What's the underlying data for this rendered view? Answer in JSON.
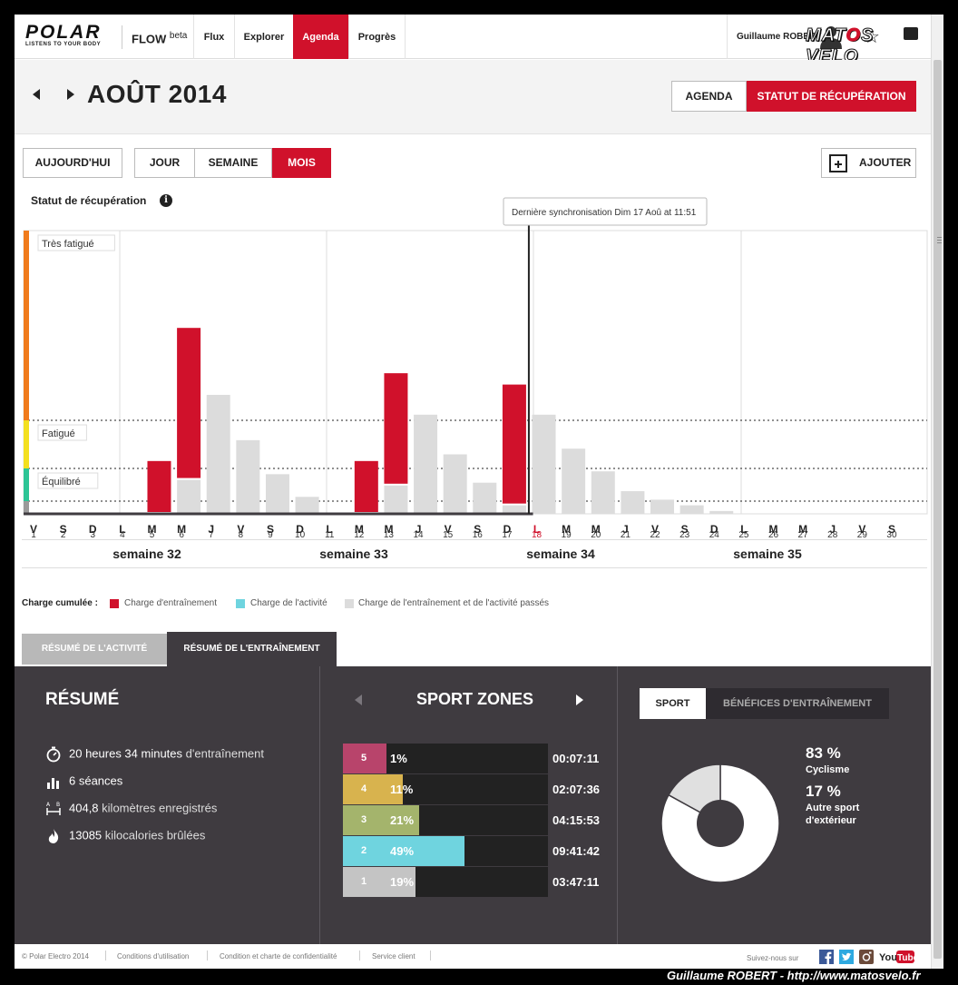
{
  "nav": {
    "brand": "POLAR",
    "tagline": "LISTENS TO YOUR BODY",
    "product": "FLOW",
    "product_sup": "beta",
    "items": [
      {
        "label": "Flux",
        "active": false
      },
      {
        "label": "Explorer",
        "active": false
      },
      {
        "label": "Agenda",
        "active": true
      },
      {
        "label": "Progrès",
        "active": false
      }
    ],
    "user_name": "Guillaume ROBERT",
    "watermark": "MATOS VELO"
  },
  "header": {
    "month": "AOÛT 2014",
    "agenda_label": "AGENDA",
    "recovery_label": "STATUT DE RÉCUPÉRATION"
  },
  "views": {
    "today": "AUJOURD'HUI",
    "day": "JOUR",
    "week": "SEMAINE",
    "month": "MOIS",
    "add": "AJOUTER"
  },
  "chart_data": {
    "type": "bar",
    "title": "Statut de récupération",
    "tooltip": "Dernière synchronisation Dim 17 Aoû at 11:51",
    "level_labels": [
      "Très fatigué",
      "Fatigué",
      "Équilibré"
    ],
    "level_colors": [
      "#f07b1b",
      "#f3e01f",
      "#2cc596"
    ],
    "today_index": 17,
    "colors": {
      "training": "#d0112b",
      "past": "#dcdcdc"
    },
    "ylim": [
      0,
      100
    ],
    "days": [
      {
        "letter": "V",
        "num": "1"
      },
      {
        "letter": "S",
        "num": "2"
      },
      {
        "letter": "D",
        "num": "3"
      },
      {
        "letter": "L",
        "num": "4"
      },
      {
        "letter": "M",
        "num": "5"
      },
      {
        "letter": "M",
        "num": "6"
      },
      {
        "letter": "J",
        "num": "7"
      },
      {
        "letter": "V",
        "num": "8"
      },
      {
        "letter": "S",
        "num": "9"
      },
      {
        "letter": "D",
        "num": "10"
      },
      {
        "letter": "L",
        "num": "11"
      },
      {
        "letter": "M",
        "num": "12"
      },
      {
        "letter": "M",
        "num": "13"
      },
      {
        "letter": "J",
        "num": "14"
      },
      {
        "letter": "V",
        "num": "15"
      },
      {
        "letter": "S",
        "num": "16"
      },
      {
        "letter": "D",
        "num": "17"
      },
      {
        "letter": "L",
        "num": "18"
      },
      {
        "letter": "M",
        "num": "19"
      },
      {
        "letter": "M",
        "num": "20"
      },
      {
        "letter": "J",
        "num": "21"
      },
      {
        "letter": "V",
        "num": "22"
      },
      {
        "letter": "S",
        "num": "23"
      },
      {
        "letter": "D",
        "num": "24"
      },
      {
        "letter": "L",
        "num": "25"
      },
      {
        "letter": "M",
        "num": "26"
      },
      {
        "letter": "M",
        "num": "27"
      },
      {
        "letter": "J",
        "num": "28"
      },
      {
        "letter": "V",
        "num": "29"
      },
      {
        "letter": "S",
        "num": "30"
      }
    ],
    "series": [
      {
        "name": "Charge d'entraînement",
        "values": [
          0,
          0,
          0,
          0,
          18,
          53,
          0,
          0,
          0,
          0,
          0,
          18,
          39,
          0,
          0,
          0,
          42,
          0,
          0,
          0,
          0,
          0,
          0,
          0,
          0,
          0,
          0,
          0,
          0,
          0
        ]
      },
      {
        "name": "Charge de l'entraînement et de l'activité passés",
        "values": [
          0,
          0,
          0,
          0,
          0,
          12,
          42,
          26,
          14,
          6,
          0,
          0,
          10,
          35,
          21,
          11,
          3,
          35,
          23,
          15,
          8,
          5,
          3,
          1,
          0,
          0,
          0,
          0,
          0,
          0
        ]
      }
    ],
    "weeks": [
      "semaine 32",
      "semaine 33",
      "semaine 34",
      "semaine 35"
    ]
  },
  "legend": {
    "title": "Charge cumulée :",
    "items": [
      {
        "label": "Charge d'entraînement",
        "color": "#d0112b"
      },
      {
        "label": "Charge de l'activité",
        "color": "#6fd4df"
      },
      {
        "label": "Charge de l'entraînement et de l'activité passés",
        "color": "#dcdcdc"
      }
    ]
  },
  "tabs": {
    "activity": "RÉSUMÉ DE L'ACTIVITÉ",
    "training": "RÉSUMÉ DE L'ENTRAÎNEMENT"
  },
  "summary": {
    "title": "RÉSUMÉ",
    "duration_value": "20 heures 34 minutes",
    "duration_unit": "d'entraînement",
    "sessions": "6 séances",
    "distance_value": "404,8",
    "distance_unit": "kilomètres enregistrés",
    "calories_value": "13085",
    "calories_unit": "kilocalories brûlées"
  },
  "sport_zones": {
    "title": "SPORT ZONES",
    "zones": [
      {
        "zone": "5",
        "pct": "1%",
        "value": 1,
        "time": "00:07:11",
        "color": "#b8446b"
      },
      {
        "zone": "4",
        "pct": "11%",
        "value": 11,
        "time": "02:07:36",
        "color": "#d8b34e"
      },
      {
        "zone": "3",
        "pct": "21%",
        "value": 21,
        "time": "04:15:53",
        "color": "#a4b46c"
      },
      {
        "zone": "2",
        "pct": "49%",
        "value": 49,
        "time": "09:41:42",
        "color": "#6fd4df"
      },
      {
        "zone": "1",
        "pct": "19%",
        "value": 19,
        "time": "03:47:11",
        "color": "#c4c4c4"
      }
    ]
  },
  "sport": {
    "tab_sport": "SPORT",
    "tab_benefits": "BÉNÉFICES D'ENTRAÎNEMENT",
    "items": [
      {
        "pct": "83 %",
        "value": 83,
        "label_line1": "Cyclisme",
        "label_line2": "",
        "color": "#ffffff"
      },
      {
        "pct": "17 %",
        "value": 17,
        "label_line1": "Autre sport",
        "label_line2": "d'extérieur",
        "color": "#e0e0e0"
      }
    ]
  },
  "footer": {
    "copyright": "© Polar Electro 2014",
    "terms": "Conditions d'utilisation",
    "privacy": "Condition et charte de confidentialité",
    "service": "Service client",
    "follow": "Suivez-nous sur",
    "credit": "Guillaume ROBERT - http://www.matosvelo.fr"
  }
}
